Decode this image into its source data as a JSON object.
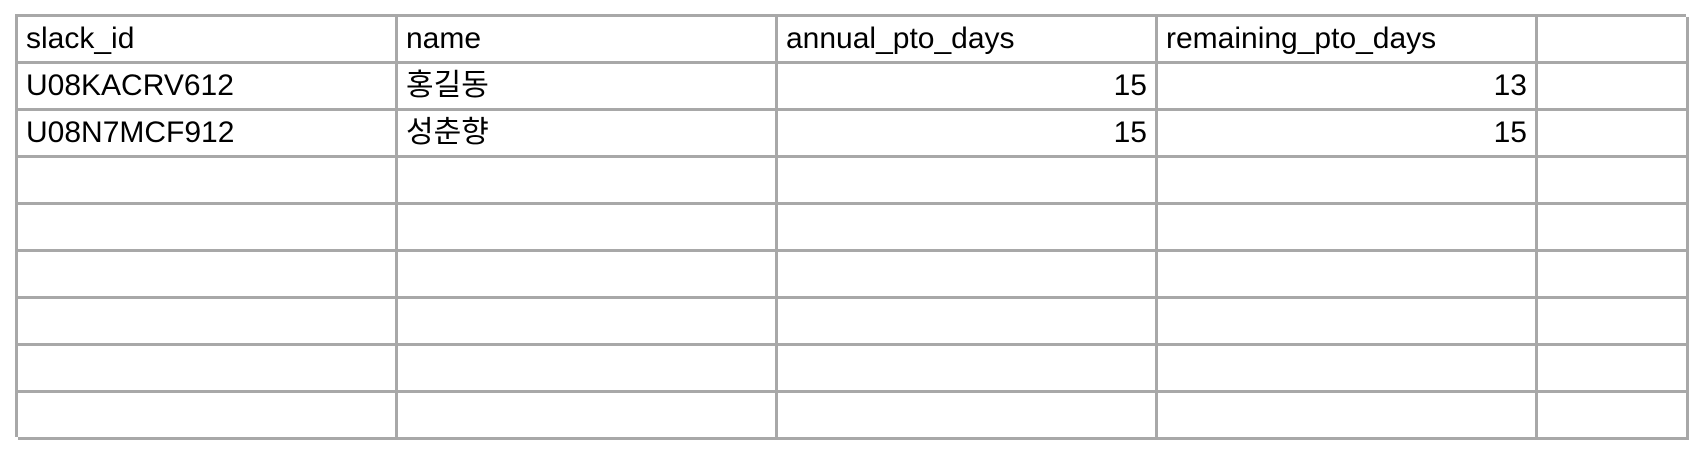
{
  "table": {
    "headers": [
      "slack_id",
      "name",
      "annual_pto_days",
      "remaining_pto_days",
      ""
    ],
    "rows": [
      {
        "slack_id": "U08KACRV612",
        "name": "홍길동",
        "annual_pto_days": "15",
        "remaining_pto_days": "13"
      },
      {
        "slack_id": "U08N7MCF912",
        "name": "성춘향",
        "annual_pto_days": "15",
        "remaining_pto_days": "15"
      }
    ]
  },
  "colors": {
    "grid_line": "#a8a8a8",
    "text": "#000000",
    "background": "#ffffff"
  }
}
